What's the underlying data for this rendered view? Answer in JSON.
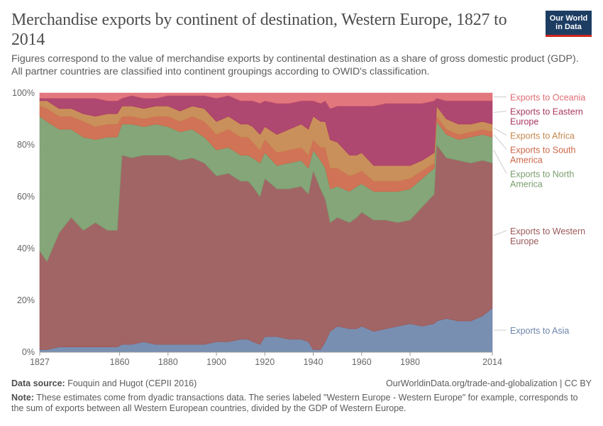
{
  "title": "Merchandise exports by continent of destination, Western Europe, 1827 to 2014",
  "subtitle": "Figures correspond to the value of merchandise exports by continental destination as a share of gross domestic product (GDP). All partner countries are classified into continent groupings according to OWID's classification.",
  "logo": {
    "line1": "Our World",
    "line2": "in Data",
    "colors": {
      "background": "#1d3d63",
      "bar": "#ce261e"
    }
  },
  "footer": {
    "source_label": "Data source:",
    "source_text": "Fouquin and Hugot (CEPII 2016)",
    "url_text": "OurWorldinData.org/trade-and-globalization | CC BY",
    "note_label": "Note:",
    "note_text": "These estimates come from dyadic transactions data. The series labeled \"Western Europe - Western Europe\" for example, corresponds to the sum of exports between all Western European countries, divided by the GDP of Western Europe."
  },
  "chart_data": {
    "type": "area",
    "stacked": true,
    "relative": true,
    "xlim": [
      1827,
      2014
    ],
    "ylim": [
      0,
      100
    ],
    "y_ticks": [
      0,
      20,
      40,
      60,
      80,
      100
    ],
    "y_tick_labels": [
      "0%",
      "20%",
      "40%",
      "60%",
      "80%",
      "100%"
    ],
    "x_ticks": [
      1827,
      1860,
      1880,
      1900,
      1920,
      1940,
      1960,
      1980,
      2014
    ],
    "x_tick_labels": [
      "1827",
      "1860",
      "1880",
      "1900",
      "1920",
      "1940",
      "1960",
      "1980",
      "2014"
    ],
    "grid": "horizontal dashed",
    "legend": "right",
    "x": [
      1827,
      1830,
      1835,
      1840,
      1845,
      1850,
      1855,
      1859,
      1861,
      1865,
      1870,
      1875,
      1880,
      1885,
      1890,
      1895,
      1900,
      1905,
      1910,
      1913,
      1915,
      1918,
      1920,
      1925,
      1930,
      1935,
      1938,
      1940,
      1943,
      1945,
      1947,
      1950,
      1955,
      1958,
      1960,
      1965,
      1970,
      1975,
      1980,
      1985,
      1990,
      1991,
      1995,
      2000,
      2005,
      2010,
      2014
    ],
    "series": [
      {
        "name": "Exports to Asia",
        "color": "#6d85ab",
        "values": [
          1,
          1,
          2,
          2,
          2,
          2,
          2,
          2,
          3,
          3,
          4,
          3,
          3,
          3,
          3,
          3,
          4,
          4,
          5,
          5,
          4,
          3,
          6,
          6,
          5,
          5,
          4,
          1,
          1,
          4,
          8,
          10,
          9,
          9,
          10,
          8,
          9,
          10,
          11,
          10,
          11,
          12,
          13,
          12,
          12,
          14,
          17
        ]
      },
      {
        "name": "Exports to Western Europe",
        "color": "#9a5858",
        "values": [
          38,
          34,
          44,
          50,
          45,
          48,
          45,
          45,
          73,
          72,
          72,
          73,
          73,
          71,
          72,
          70,
          64,
          65,
          61,
          61,
          60,
          57,
          61,
          57,
          58,
          59,
          57,
          69,
          62,
          55,
          42,
          42,
          41,
          43,
          44,
          43,
          42,
          40,
          40,
          46,
          50,
          68,
          62,
          62,
          61,
          60,
          56
        ]
      },
      {
        "name": "Exports to North America",
        "color": "#799e6e",
        "values": [
          52,
          54,
          40,
          34,
          36,
          32,
          36,
          36,
          12,
          13,
          11,
          12,
          11,
          11,
          11,
          10,
          10,
          10,
          10,
          10,
          11,
          13,
          10,
          9,
          10,
          10,
          10,
          8,
          11,
          12,
          13,
          12,
          12,
          12,
          11,
          11,
          11,
          12,
          12,
          11,
          10,
          9,
          9,
          8,
          10,
          10,
          10
        ]
      },
      {
        "name": "Exports to South America",
        "color": "#cd6749",
        "values": [
          4,
          5,
          5,
          5,
          6,
          5,
          5,
          5,
          3,
          3,
          3,
          3,
          4,
          4,
          5,
          6,
          6,
          7,
          7,
          7,
          6,
          5,
          5,
          5,
          5,
          5,
          5,
          4,
          5,
          8,
          8,
          7,
          6,
          5,
          5,
          4,
          4,
          4,
          4,
          3,
          2,
          2,
          2,
          2,
          2,
          2,
          2
        ]
      },
      {
        "name": "Exports to Africa",
        "color": "#c6874d",
        "values": [
          2,
          3,
          3,
          3,
          3,
          4,
          4,
          4,
          4,
          4,
          4,
          4,
          4,
          4,
          4,
          5,
          5,
          5,
          5,
          5,
          6,
          6,
          5,
          7,
          8,
          9,
          10,
          9,
          10,
          10,
          11,
          10,
          8,
          7,
          7,
          6,
          6,
          6,
          5,
          4,
          4,
          4,
          4,
          4,
          3,
          3,
          3
        ]
      },
      {
        "name": "Exports to Eastern Europe",
        "color": "#a83864",
        "values": [
          1,
          1,
          4,
          4,
          6,
          7,
          5,
          5,
          3,
          4,
          4,
          3,
          4,
          6,
          4,
          5,
          9,
          8,
          9,
          9,
          10,
          12,
          10,
          12,
          10,
          9,
          11,
          6,
          7,
          8,
          12,
          14,
          19,
          19,
          18,
          23,
          24,
          24,
          24,
          22,
          20,
          3,
          7,
          9,
          9,
          8,
          9
        ]
      },
      {
        "name": "Exports to Oceania",
        "color": "#df6b73",
        "values": [
          2,
          2,
          2,
          2,
          2,
          2,
          3,
          3,
          2,
          1,
          2,
          2,
          1,
          1,
          1,
          1,
          2,
          1,
          3,
          3,
          3,
          4,
          3,
          4,
          4,
          3,
          3,
          3,
          4,
          3,
          6,
          5,
          5,
          5,
          5,
          5,
          4,
          4,
          4,
          4,
          3,
          2,
          3,
          3,
          3,
          3,
          3
        ]
      }
    ],
    "legend_lines": [
      [
        "Exports to Oceania"
      ],
      [
        "Exports to Eastern",
        "Europe"
      ],
      [
        "Exports to Africa"
      ],
      [
        "Exports to South",
        "America"
      ],
      [
        "Exports to North",
        "America"
      ],
      [
        "Exports to Western",
        "Europe"
      ],
      [
        "Exports to Asia"
      ]
    ]
  }
}
